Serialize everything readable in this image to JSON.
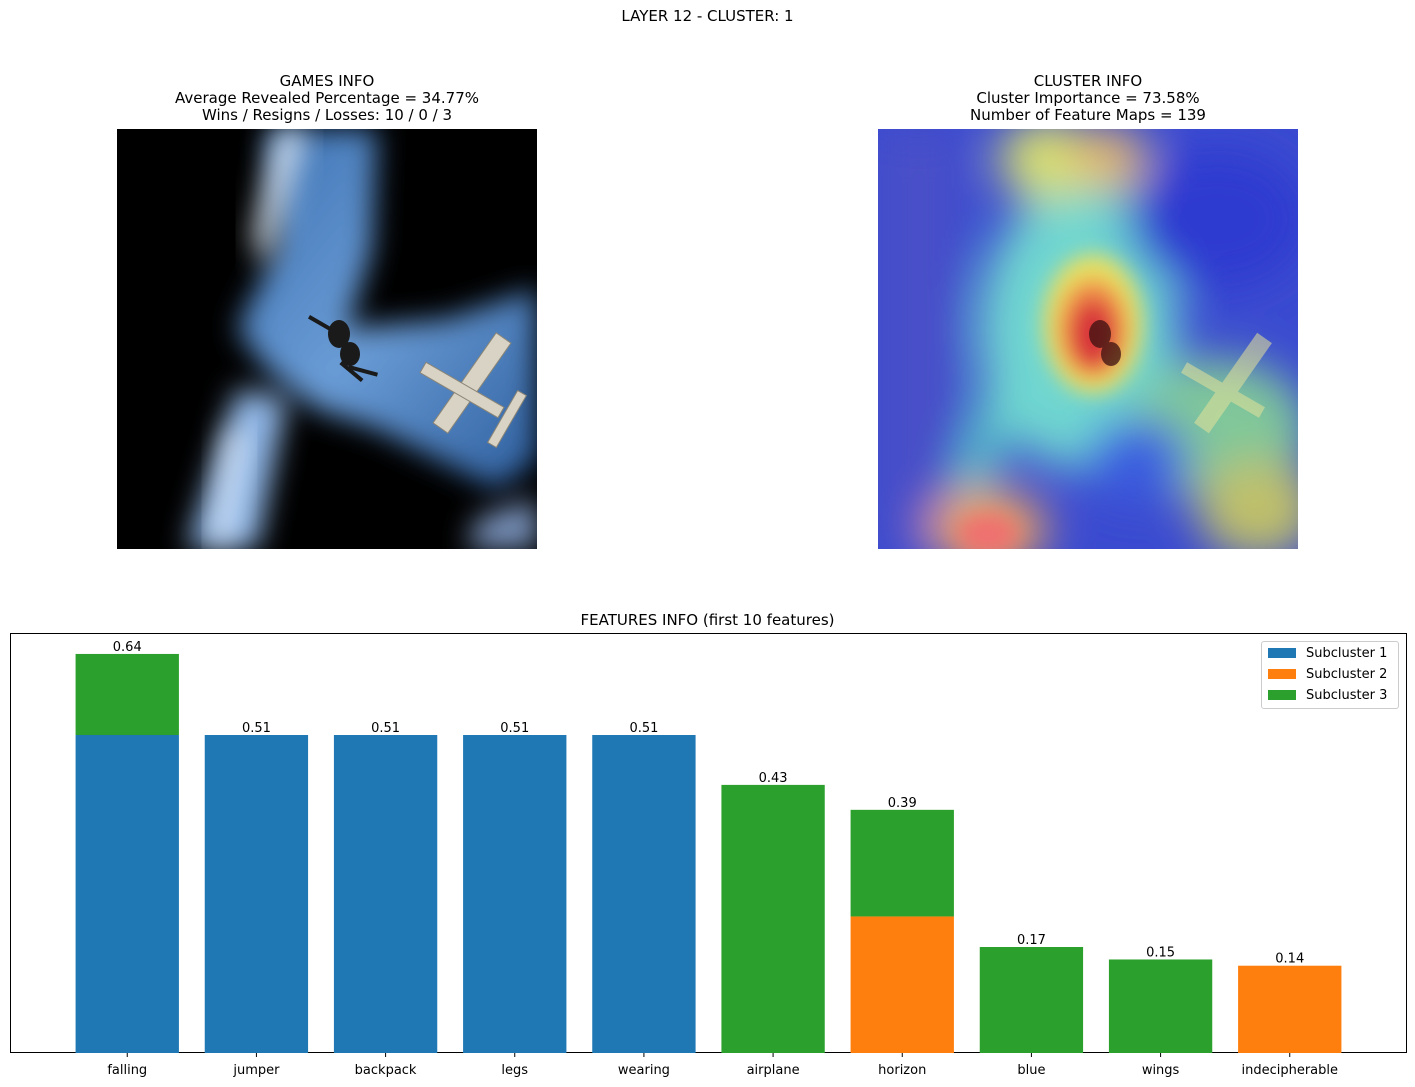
{
  "figure_title": "LAYER 12 - CLUSTER: 1",
  "games_info": {
    "title": "GAMES INFO",
    "line1": "Average Revealed Percentage = 34.77%",
    "line2": "Wins / Resigns / Losses: 10 / 0 / 3"
  },
  "cluster_info": {
    "title": "CLUSTER INFO",
    "line1": "Cluster Importance = 73.58%",
    "line2": "Number of Feature Maps = 139"
  },
  "colors": {
    "subcluster1": "#1f77b4",
    "subcluster2": "#ff7f0e",
    "subcluster3": "#2ca02c"
  },
  "chart_data": {
    "type": "bar",
    "title": "FEATURES INFO (first 10 features)",
    "categories": [
      "falling",
      "jumper",
      "backpack",
      "legs",
      "wearing",
      "airplane",
      "horizon",
      "blue",
      "wings",
      "indecipherable"
    ],
    "series": [
      {
        "name": "Subcluster 1",
        "color": "#1f77b4",
        "values": [
          0.51,
          0.51,
          0.51,
          0.51,
          0.51,
          0,
          0,
          0,
          0,
          0
        ]
      },
      {
        "name": "Subcluster 2",
        "color": "#ff7f0e",
        "values": [
          0,
          0,
          0,
          0,
          0,
          0,
          0.219,
          0,
          0,
          0.14
        ]
      },
      {
        "name": "Subcluster 3",
        "color": "#2ca02c",
        "values": [
          0.13,
          0,
          0,
          0,
          0,
          0.43,
          0.171,
          0.17,
          0.15,
          0
        ]
      }
    ],
    "totals": [
      0.64,
      0.51,
      0.51,
      0.51,
      0.51,
      0.43,
      0.39,
      0.17,
      0.15,
      0.14
    ],
    "total_labels": [
      "0.64",
      "0.51",
      "0.51",
      "0.51",
      "0.51",
      "0.43",
      "0.39",
      "0.17",
      "0.15",
      "0.14"
    ],
    "ylim": [
      0,
      0.672
    ],
    "stacked": true,
    "legend_position": "top-right",
    "y_axis_visible": false,
    "grid": false
  }
}
